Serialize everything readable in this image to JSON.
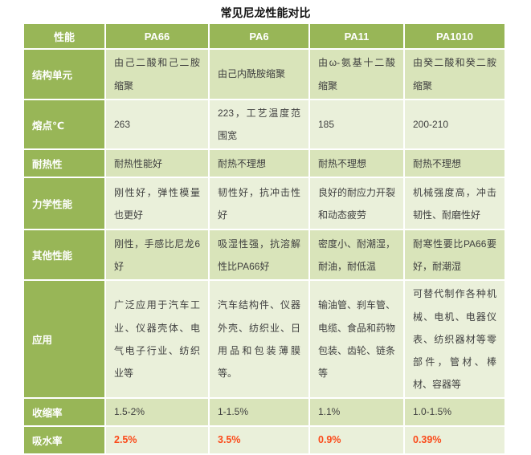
{
  "colors": {
    "header_green": "#98b657",
    "row_light": "#d9e4ba",
    "row_pale": "#eaf0da",
    "cell_text": "#3f3f3f",
    "header_text": "#ffffff",
    "highlight": "#fb4a1a"
  },
  "chart_data": {
    "type": "table",
    "title": "常见尼龙性能对比",
    "columns": [
      "性能",
      "PA66",
      "PA6",
      "PA11",
      "PA1010"
    ],
    "rows": [
      {
        "label": "结构单元",
        "cells": [
          "由己二酸和己二胺缩聚",
          "由己内酰胺缩聚",
          "由ω-氨基十二酸缩聚",
          "由癸二酸和癸二胺缩聚"
        ]
      },
      {
        "label": "熔点℃",
        "cells": [
          "263",
          "223，工艺温度范围宽",
          "185",
          "200-210"
        ]
      },
      {
        "label": "耐热性",
        "cells": [
          "耐热性能好",
          "耐热不理想",
          "耐热不理想",
          "耐热不理想"
        ]
      },
      {
        "label": "力学性能",
        "cells": [
          "刚性好，弹性模量也更好",
          "韧性好，抗冲击性好",
          "良好的耐应力开裂和动态疲劳",
          "机械强度高，冲击韧性、耐磨性好"
        ]
      },
      {
        "label": "其他性能",
        "cells": [
          "刚性，手感比尼龙6好",
          "吸湿性强，抗溶解性比PA66好",
          "密度小、耐潮湿，耐油，耐低温",
          "耐寒性要比PA66要好，耐潮湿"
        ]
      },
      {
        "label": "应用",
        "cells": [
          "广泛应用于汽车工业、仪器壳体、电气电子行业、纺织业等",
          "汽车结构件、仪器外壳、纺织业、日用品和包装薄膜等。",
          "输油管、刹车管、电缆、食品和药物包装、齿轮、链条等",
          "可替代制作各种机械、电机、电器仪表、纺织器材等零部件，管材、棒材、容器等"
        ]
      },
      {
        "label": "收缩率",
        "cells": [
          "1.5-2%",
          "1-1.5%",
          "1.1%",
          "1.0-1.5%"
        ]
      },
      {
        "label": "吸水率",
        "cells": [
          "2.5%",
          "3.5%",
          "0.9%",
          "0.39%"
        ],
        "highlight": true
      }
    ]
  }
}
